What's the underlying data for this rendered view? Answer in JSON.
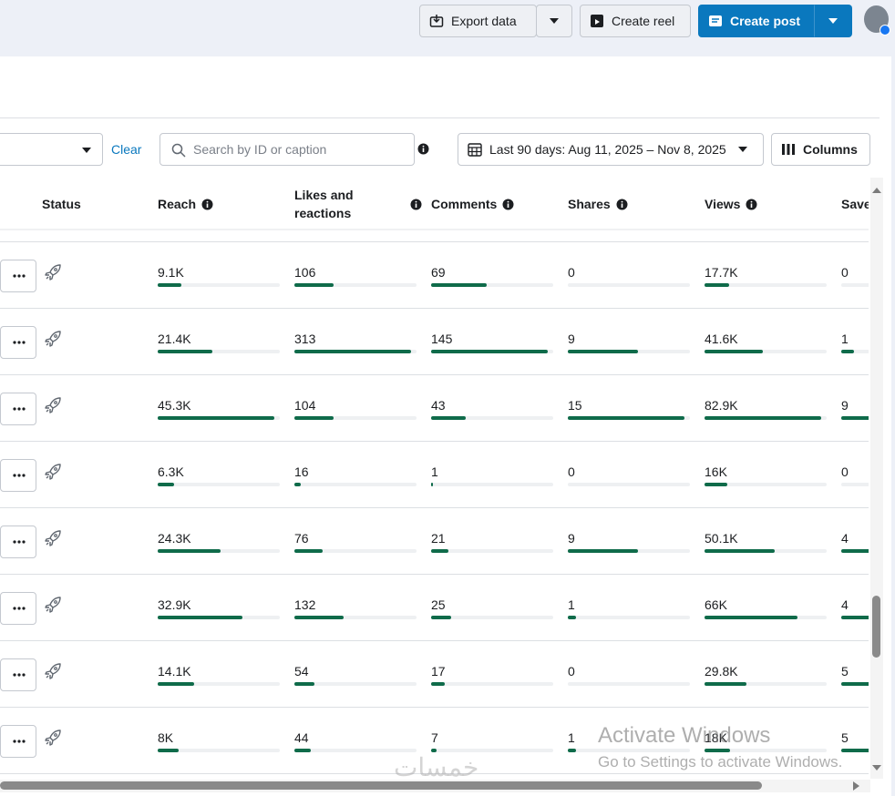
{
  "topbar": {
    "export": "Export data",
    "reel": "Create reel",
    "post": "Create post"
  },
  "filters": {
    "clear": "Clear",
    "search_placeholder": "Search by ID or caption",
    "date_range": "Last 90 days: Aug 11, 2025 – Nov 8, 2025",
    "columns": "Columns"
  },
  "table": {
    "columns": [
      "Status",
      "Reach",
      "Likes and reactions",
      "Comments",
      "Shares",
      "Views",
      "Save"
    ],
    "rows": [
      [
        {
          "value": 9100,
          "label": "9.1K"
        },
        106,
        69,
        0,
        {
          "value": 17700,
          "label": "17.7K"
        },
        0
      ],
      [
        {
          "value": 21400,
          "label": "21.4K"
        },
        313,
        145,
        9,
        {
          "value": 41600,
          "label": "41.6K"
        },
        1
      ],
      [
        {
          "value": 45300,
          "label": "45.3K"
        },
        104,
        43,
        15,
        {
          "value": 82900,
          "label": "82.9K"
        },
        9
      ],
      [
        {
          "value": 6300,
          "label": "6.3K"
        },
        16,
        1,
        0,
        {
          "value": 16000,
          "label": "16K"
        },
        0
      ],
      [
        {
          "value": 24300,
          "label": "24.3K"
        },
        76,
        21,
        9,
        {
          "value": 50100,
          "label": "50.1K"
        },
        4
      ],
      [
        {
          "value": 32900,
          "label": "32.9K"
        },
        132,
        25,
        1,
        {
          "value": 66000,
          "label": "66K"
        },
        4
      ],
      [
        {
          "value": 14100,
          "label": "14.1K"
        },
        54,
        17,
        0,
        {
          "value": 29800,
          "label": "29.8K"
        },
        5
      ],
      [
        {
          "value": 8000,
          "label": "8K"
        },
        44,
        7,
        1,
        {
          "value": 18000,
          "label": "18K"
        },
        5
      ]
    ]
  },
  "overlay": {
    "title": "Activate Windows",
    "subtitle": "Go to Settings to activate Windows.",
    "watermark": "خمسات"
  }
}
